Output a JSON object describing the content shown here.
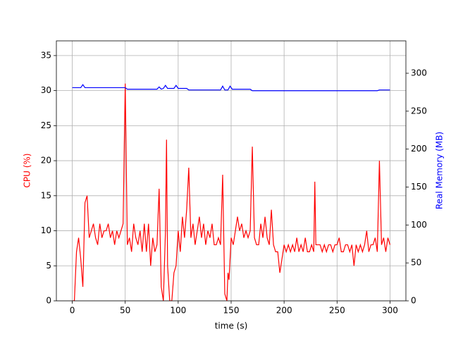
{
  "chart_data": {
    "type": "line",
    "xlabel": "time (s)",
    "ylabel": "CPU (%)",
    "y2label": "Real Memory (MB)",
    "xlim": [
      -15,
      315
    ],
    "xticks": [
      0,
      50,
      100,
      150,
      200,
      250,
      300
    ],
    "ylim": [
      0,
      37.1
    ],
    "yticks": [
      0,
      5,
      10,
      15,
      20,
      25,
      30,
      35
    ],
    "y2lim": [
      0,
      342.7
    ],
    "y2ticks": [
      0,
      50,
      100,
      150,
      200,
      250,
      300
    ],
    "grid": true,
    "series": [
      {
        "name": "CPU (%)",
        "color": "#ff0000",
        "x": [
          0,
          2,
          4,
          6,
          8,
          10,
          12,
          14,
          16,
          18,
          20,
          22,
          24,
          26,
          28,
          30,
          32,
          34,
          36,
          38,
          40,
          42,
          44,
          46,
          48,
          50,
          52,
          54,
          56,
          58,
          60,
          62,
          64,
          66,
          68,
          70,
          72,
          74,
          76,
          78,
          80,
          82,
          84,
          86,
          88,
          89,
          90,
          92,
          94,
          96,
          98,
          100,
          102,
          104,
          106,
          108,
          110,
          112,
          114,
          116,
          118,
          120,
          122,
          124,
          126,
          128,
          130,
          132,
          134,
          136,
          138,
          140,
          142,
          144,
          146,
          147,
          148,
          150,
          152,
          154,
          156,
          158,
          160,
          162,
          164,
          166,
          168,
          170,
          172,
          174,
          176,
          178,
          180,
          182,
          184,
          186,
          188,
          190,
          192,
          194,
          196,
          198,
          200,
          202,
          204,
          206,
          208,
          210,
          212,
          214,
          216,
          218,
          220,
          222,
          224,
          226,
          228,
          229,
          230,
          232,
          234,
          236,
          238,
          240,
          242,
          244,
          246,
          248,
          250,
          252,
          254,
          256,
          258,
          260,
          262,
          264,
          266,
          268,
          270,
          272,
          274,
          276,
          278,
          280,
          282,
          284,
          286,
          288,
          290,
          292,
          294,
          296,
          298,
          300
        ],
        "values": [
          0,
          0,
          7,
          9,
          6,
          2,
          14,
          15,
          9,
          10,
          11,
          9,
          8,
          11,
          9,
          10,
          10,
          11,
          9,
          10,
          8,
          10,
          9,
          10,
          11,
          31,
          8,
          9,
          7,
          11,
          9,
          8,
          10,
          7,
          11,
          7,
          11,
          5,
          9,
          7,
          8,
          16,
          2,
          0,
          10,
          23,
          5,
          0,
          0,
          4,
          5,
          10,
          7,
          12,
          9,
          13,
          19,
          9,
          11,
          8,
          10,
          12,
          9,
          11,
          8,
          10,
          9,
          11,
          8,
          8,
          9,
          8,
          18,
          1,
          0,
          4,
          3,
          9,
          8,
          10,
          12,
          10,
          11,
          9,
          10,
          9,
          10,
          22,
          9,
          8,
          8,
          11,
          9,
          12,
          9,
          8,
          13,
          8,
          7,
          7,
          4,
          6,
          8,
          7,
          8,
          7,
          8,
          7,
          9,
          7,
          8,
          7,
          9,
          7,
          7,
          8,
          7,
          17,
          8,
          8,
          8,
          7,
          8,
          7,
          8,
          8,
          7,
          8,
          8,
          9,
          7,
          7,
          8,
          8,
          7,
          8,
          5,
          8,
          7,
          8,
          7,
          8,
          10,
          7,
          8,
          8,
          9,
          7,
          20,
          8,
          9,
          7,
          9,
          8
        ]
      },
      {
        "name": "Real Memory (MB)",
        "color": "#0000ff",
        "axis": "y2",
        "x": [
          0,
          8,
          10,
          12,
          50,
          52,
          80,
          82,
          84,
          86,
          88,
          90,
          96,
          98,
          100,
          108,
          110,
          140,
          142,
          144,
          147,
          149,
          151,
          168,
          170,
          288,
          290,
          300
        ],
        "values": [
          281,
          281,
          285,
          281,
          281,
          279,
          279,
          282,
          279,
          280,
          284,
          280,
          280,
          284,
          280,
          280,
          278,
          278,
          283,
          278,
          278,
          283,
          279,
          279,
          277,
          277,
          278,
          278
        ]
      }
    ]
  }
}
